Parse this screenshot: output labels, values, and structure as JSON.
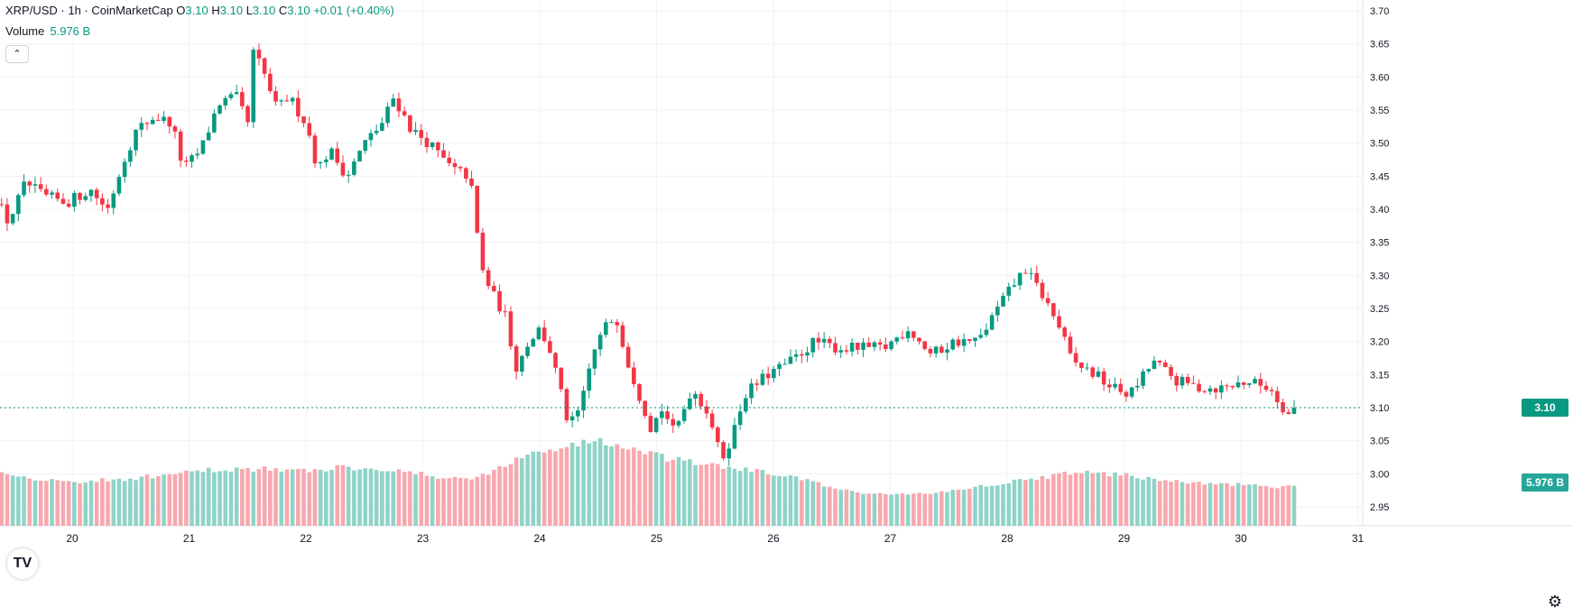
{
  "header": {
    "symbol": "XRP/USD · 1h · CoinMarketCap",
    "o_key": "O",
    "o_val": "3.10",
    "h_key": "H",
    "h_val": "3.10",
    "l_key": "L",
    "l_val": "3.10",
    "c_key": "C",
    "c_val": "3.10",
    "change": "+0.01 (+0.40%)",
    "volume_label": "Volume",
    "volume_value": "5.976 B",
    "collapse_icon": "chevron-up-icon"
  },
  "price_tag": "3.10",
  "volume_tag": "5.976 B",
  "colors": {
    "up": "#089981",
    "down": "#f23645",
    "up_volume": "#8fd3c7",
    "down_volume": "#f7a8ae",
    "volume_tag": "#26a69a",
    "grid": "#f0f3fa"
  },
  "chart_data": {
    "type": "candlestick",
    "symbol": "XRP/USD",
    "interval": "1h",
    "y_ticks": [
      "3.70",
      "3.65",
      "3.60",
      "3.55",
      "3.50",
      "3.45",
      "3.40",
      "3.35",
      "3.30",
      "3.25",
      "3.20",
      "3.15",
      "3.10",
      "3.05",
      "3.00",
      "2.95"
    ],
    "x_ticks": [
      "20",
      "21",
      "22",
      "23",
      "24",
      "25",
      "26",
      "27",
      "28",
      "29",
      "30",
      "31"
    ],
    "ylim": [
      2.93,
      3.71
    ],
    "last_price": 3.1,
    "volume_last": "5.976 B",
    "grid": true,
    "axis_position": "right",
    "price_path": [
      [
        19.3,
        3.45
      ],
      [
        19.5,
        3.38
      ],
      [
        19.65,
        3.44
      ],
      [
        19.8,
        3.42
      ],
      [
        20.0,
        3.41
      ],
      [
        20.2,
        3.43
      ],
      [
        20.35,
        3.4
      ],
      [
        20.5,
        3.48
      ],
      [
        20.6,
        3.52
      ],
      [
        20.75,
        3.54
      ],
      [
        20.9,
        3.53
      ],
      [
        21.0,
        3.46
      ],
      [
        21.15,
        3.49
      ],
      [
        21.3,
        3.56
      ],
      [
        21.45,
        3.57
      ],
      [
        21.55,
        3.53
      ],
      [
        21.6,
        3.64
      ],
      [
        21.7,
        3.6
      ],
      [
        21.8,
        3.55
      ],
      [
        21.9,
        3.57
      ],
      [
        22.05,
        3.53
      ],
      [
        22.15,
        3.46
      ],
      [
        22.25,
        3.49
      ],
      [
        22.4,
        3.45
      ],
      [
        22.55,
        3.5
      ],
      [
        22.7,
        3.53
      ],
      [
        22.8,
        3.57
      ],
      [
        22.95,
        3.52
      ],
      [
        23.1,
        3.5
      ],
      [
        23.3,
        3.46
      ],
      [
        23.45,
        3.45
      ],
      [
        23.55,
        3.31
      ],
      [
        23.65,
        3.27
      ],
      [
        23.75,
        3.24
      ],
      [
        23.85,
        3.16
      ],
      [
        23.95,
        3.2
      ],
      [
        24.05,
        3.22
      ],
      [
        24.15,
        3.18
      ],
      [
        24.3,
        3.07
      ],
      [
        24.4,
        3.1
      ],
      [
        24.5,
        3.18
      ],
      [
        24.6,
        3.22
      ],
      [
        24.7,
        3.24
      ],
      [
        24.8,
        3.17
      ],
      [
        24.9,
        3.12
      ],
      [
        25.0,
        3.07
      ],
      [
        25.1,
        3.1
      ],
      [
        25.2,
        3.06
      ],
      [
        25.35,
        3.13
      ],
      [
        25.5,
        3.09
      ],
      [
        25.6,
        3.02
      ],
      [
        25.7,
        3.06
      ],
      [
        25.8,
        3.12
      ],
      [
        26.0,
        3.15
      ],
      [
        26.2,
        3.17
      ],
      [
        26.4,
        3.2
      ],
      [
        26.6,
        3.19
      ],
      [
        26.8,
        3.19
      ],
      [
        27.0,
        3.19
      ],
      [
        27.2,
        3.22
      ],
      [
        27.4,
        3.18
      ],
      [
        27.6,
        3.2
      ],
      [
        27.8,
        3.2
      ],
      [
        28.0,
        3.26
      ],
      [
        28.2,
        3.31
      ],
      [
        28.35,
        3.27
      ],
      [
        28.5,
        3.22
      ],
      [
        28.6,
        3.17
      ],
      [
        28.8,
        3.15
      ],
      [
        28.95,
        3.13
      ],
      [
        29.1,
        3.12
      ],
      [
        29.3,
        3.17
      ],
      [
        29.5,
        3.14
      ],
      [
        29.7,
        3.13
      ],
      [
        29.9,
        3.13
      ],
      [
        30.1,
        3.14
      ],
      [
        30.3,
        3.13
      ],
      [
        30.45,
        3.09
      ],
      [
        30.52,
        3.1
      ]
    ],
    "volume_shape": [
      [
        19.3,
        0.6
      ],
      [
        19.6,
        0.45
      ],
      [
        20.0,
        0.38
      ],
      [
        20.4,
        0.42
      ],
      [
        20.8,
        0.48
      ],
      [
        21.2,
        0.56
      ],
      [
        21.6,
        0.58
      ],
      [
        22.0,
        0.54
      ],
      [
        22.3,
        0.6
      ],
      [
        22.7,
        0.58
      ],
      [
        23.1,
        0.46
      ],
      [
        23.4,
        0.42
      ],
      [
        23.6,
        0.55
      ],
      [
        23.9,
        0.78
      ],
      [
        24.2,
        0.9
      ],
      [
        24.5,
        1.0
      ],
      [
        24.8,
        0.85
      ],
      [
        25.1,
        0.72
      ],
      [
        25.5,
        0.62
      ],
      [
        25.8,
        0.55
      ],
      [
        26.1,
        0.48
      ],
      [
        26.4,
        0.35
      ],
      [
        26.7,
        0.22
      ],
      [
        27.0,
        0.2
      ],
      [
        27.4,
        0.22
      ],
      [
        27.7,
        0.3
      ],
      [
        28.1,
        0.4
      ],
      [
        28.5,
        0.5
      ],
      [
        28.8,
        0.52
      ],
      [
        29.2,
        0.44
      ],
      [
        29.6,
        0.36
      ],
      [
        30.0,
        0.34
      ],
      [
        30.3,
        0.3
      ],
      [
        30.55,
        0.32
      ]
    ]
  }
}
